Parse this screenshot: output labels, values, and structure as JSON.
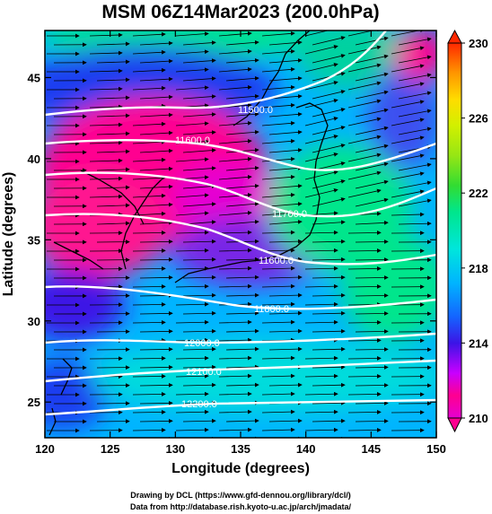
{
  "title": "MSM 06Z14Mar2023 (200.0hPa)",
  "xlabel": "Longitude (degrees)",
  "ylabel": "Latitude  (degrees)",
  "xticks": [
    "120",
    "125",
    "130",
    "135",
    "140",
    "145",
    "150"
  ],
  "yticks": [
    "25",
    "30",
    "35",
    "40",
    "45"
  ],
  "colorbar": {
    "ticks": [
      "210",
      "214",
      "218",
      "222",
      "226",
      "230"
    ],
    "range": [
      210,
      230
    ],
    "colors": [
      "#e600d2",
      "#ff0090",
      "#c800ff",
      "#3c14e6",
      "#1464ff",
      "#00b4ff",
      "#00e6dc",
      "#00e68c",
      "#32dc32",
      "#96e614",
      "#d2f000",
      "#ffdc00",
      "#ff9600",
      "#ff5a00",
      "#ff2800"
    ]
  },
  "contours": [
    {
      "label": "11500.0"
    },
    {
      "label": "11600.0"
    },
    {
      "label": "11700.0"
    },
    {
      "label": "11600.0"
    },
    {
      "label": "11800.0"
    },
    {
      "label": "12000.0"
    },
    {
      "label": "12100.0"
    },
    {
      "label": "12200.0"
    }
  ],
  "credits": {
    "line1": "Drawing by DCL (https://www.gfd-dennou.org/library/dcl/)",
    "line2": "Data from http://database.rish.kyoto-u.ac.jp/arch/jmadata/"
  }
}
